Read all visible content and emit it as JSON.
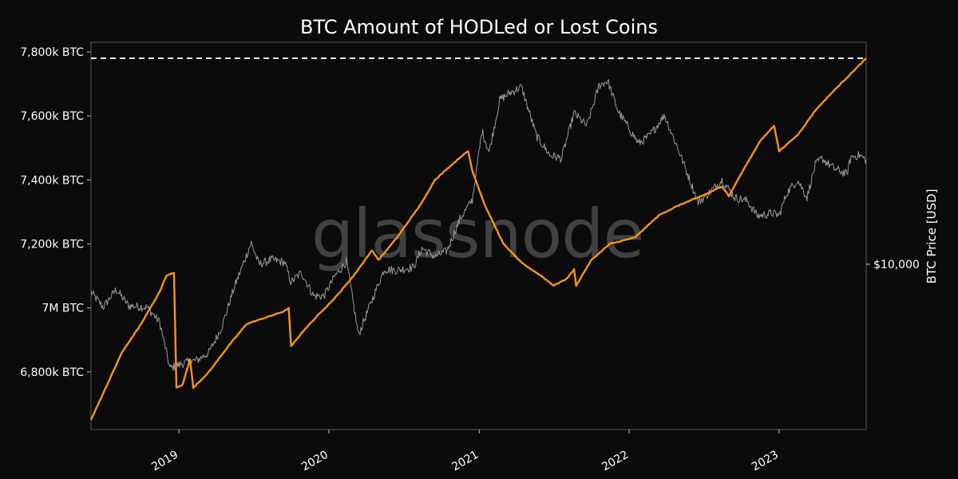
{
  "chart_data": {
    "type": "line",
    "title": "BTC Amount of HODLed or Lost Coins",
    "watermark": "glassnode",
    "x_ticks": [
      "2019",
      "2020",
      "2021",
      "2022",
      "2023"
    ],
    "xlim": [
      "2018-06-01",
      "2023-08-01"
    ],
    "y_ticks": [
      {
        "value": 6800000,
        "label": "6,800k BTC"
      },
      {
        "value": 7000000,
        "label": "7M BTC"
      },
      {
        "value": 7200000,
        "label": "7,200k BTC"
      },
      {
        "value": 7400000,
        "label": "7,400k BTC"
      },
      {
        "value": 7600000,
        "label": "7,600k BTC"
      },
      {
        "value": 7800000,
        "label": "7,800k BTC"
      }
    ],
    "ylim": [
      6620000,
      7830000
    ],
    "right_axis": {
      "label": "BTC Price [USD]",
      "scale": "log",
      "ticks": [
        {
          "value": 10000,
          "label": "$10,000"
        }
      ],
      "ylim": [
        1800,
        100000
      ]
    },
    "reference_line": {
      "value": 7780000,
      "style": "dashed",
      "color": "#ffffff"
    },
    "series": [
      {
        "role": "hodl",
        "color": "#f7931a",
        "axis": "left",
        "points": [
          [
            "2018-06-01",
            6650000
          ],
          [
            "2018-08-15",
            6860000
          ],
          [
            "2018-10-01",
            6950000
          ],
          [
            "2018-11-15",
            7050000
          ],
          [
            "2018-12-01",
            7100000
          ],
          [
            "2018-12-20",
            7110000
          ],
          [
            "2018-12-26",
            6750000
          ],
          [
            "2019-01-10",
            6760000
          ],
          [
            "2019-01-28",
            6840000
          ],
          [
            "2019-02-05",
            6750000
          ],
          [
            "2019-03-15",
            6800000
          ],
          [
            "2019-05-01",
            6880000
          ],
          [
            "2019-06-15",
            6950000
          ],
          [
            "2019-08-01",
            6970000
          ],
          [
            "2019-09-15",
            6990000
          ],
          [
            "2019-09-25",
            7000000
          ],
          [
            "2019-10-01",
            6880000
          ],
          [
            "2019-11-01",
            6930000
          ],
          [
            "2019-12-15",
            6990000
          ],
          [
            "2020-01-15",
            7030000
          ],
          [
            "2020-03-01",
            7100000
          ],
          [
            "2020-04-15",
            7180000
          ],
          [
            "2020-05-01",
            7150000
          ],
          [
            "2020-06-15",
            7220000
          ],
          [
            "2020-08-15",
            7330000
          ],
          [
            "2020-09-15",
            7400000
          ],
          [
            "2020-11-15",
            7470000
          ],
          [
            "2020-12-05",
            7490000
          ],
          [
            "2020-12-15",
            7430000
          ],
          [
            "2021-01-15",
            7320000
          ],
          [
            "2021-03-01",
            7200000
          ],
          [
            "2021-04-15",
            7140000
          ],
          [
            "2021-06-01",
            7100000
          ],
          [
            "2021-07-01",
            7070000
          ],
          [
            "2021-08-01",
            7090000
          ],
          [
            "2021-08-20",
            7120000
          ],
          [
            "2021-08-25",
            7070000
          ],
          [
            "2021-10-01",
            7150000
          ],
          [
            "2021-11-15",
            7200000
          ],
          [
            "2022-01-15",
            7220000
          ],
          [
            "2022-03-15",
            7290000
          ],
          [
            "2022-05-01",
            7320000
          ],
          [
            "2022-07-15",
            7360000
          ],
          [
            "2022-08-15",
            7380000
          ],
          [
            "2022-09-01",
            7350000
          ],
          [
            "2022-10-01",
            7420000
          ],
          [
            "2022-11-15",
            7520000
          ],
          [
            "2022-12-20",
            7570000
          ],
          [
            "2023-01-01",
            7490000
          ],
          [
            "2023-02-15",
            7540000
          ],
          [
            "2023-04-01",
            7620000
          ],
          [
            "2023-05-15",
            7680000
          ],
          [
            "2023-07-01",
            7740000
          ],
          [
            "2023-08-01",
            7780000
          ]
        ]
      },
      {
        "role": "price",
        "color": "#9a9a9a",
        "axis": "right",
        "points": [
          [
            "2018-06-01",
            7500
          ],
          [
            "2018-07-01",
            6400
          ],
          [
            "2018-08-01",
            7700
          ],
          [
            "2018-09-01",
            6500
          ],
          [
            "2018-10-15",
            6400
          ],
          [
            "2018-11-15",
            5500
          ],
          [
            "2018-12-10",
            3400
          ],
          [
            "2019-01-15",
            3600
          ],
          [
            "2019-02-15",
            3700
          ],
          [
            "2019-03-15",
            4000
          ],
          [
            "2019-04-15",
            5200
          ],
          [
            "2019-05-15",
            7800
          ],
          [
            "2019-06-26",
            12500
          ],
          [
            "2019-07-15",
            10000
          ],
          [
            "2019-08-15",
            10500
          ],
          [
            "2019-09-15",
            10200
          ],
          [
            "2019-10-01",
            8300
          ],
          [
            "2019-10-26",
            9200
          ],
          [
            "2019-11-25",
            7200
          ],
          [
            "2019-12-20",
            7200
          ],
          [
            "2020-01-15",
            8800
          ],
          [
            "2020-02-13",
            10300
          ],
          [
            "2020-03-13",
            4800
          ],
          [
            "2020-04-15",
            6900
          ],
          [
            "2020-05-15",
            9500
          ],
          [
            "2020-06-15",
            9400
          ],
          [
            "2020-07-25",
            9700
          ],
          [
            "2020-08-15",
            11800
          ],
          [
            "2020-09-15",
            10800
          ],
          [
            "2020-10-15",
            11500
          ],
          [
            "2020-11-15",
            16000
          ],
          [
            "2020-12-15",
            19500
          ],
          [
            "2021-01-08",
            40000
          ],
          [
            "2021-01-25",
            32000
          ],
          [
            "2021-02-20",
            55000
          ],
          [
            "2021-03-15",
            59000
          ],
          [
            "2021-04-14",
            63000
          ],
          [
            "2021-05-20",
            38000
          ],
          [
            "2021-06-22",
            31000
          ],
          [
            "2021-07-20",
            30000
          ],
          [
            "2021-08-20",
            48000
          ],
          [
            "2021-09-20",
            42000
          ],
          [
            "2021-10-20",
            64000
          ],
          [
            "2021-11-10",
            67000
          ],
          [
            "2021-12-05",
            49000
          ],
          [
            "2022-01-24",
            35000
          ],
          [
            "2022-02-20",
            38000
          ],
          [
            "2022-03-28",
            47000
          ],
          [
            "2022-05-09",
            30000
          ],
          [
            "2022-06-18",
            19000
          ],
          [
            "2022-07-15",
            21000
          ],
          [
            "2022-08-15",
            24000
          ],
          [
            "2022-09-15",
            20000
          ],
          [
            "2022-10-15",
            19300
          ],
          [
            "2022-11-10",
            16500
          ],
          [
            "2022-12-15",
            17000
          ],
          [
            "2023-01-01",
            16600
          ],
          [
            "2023-01-20",
            21000
          ],
          [
            "2023-02-15",
            24000
          ],
          [
            "2023-03-10",
            20000
          ],
          [
            "2023-03-30",
            28000
          ],
          [
            "2023-04-15",
            30000
          ],
          [
            "2023-05-15",
            27000
          ],
          [
            "2023-06-15",
            25500
          ],
          [
            "2023-06-25",
            30500
          ],
          [
            "2023-07-15",
            31000
          ],
          [
            "2023-08-01",
            29500
          ]
        ]
      }
    ]
  }
}
